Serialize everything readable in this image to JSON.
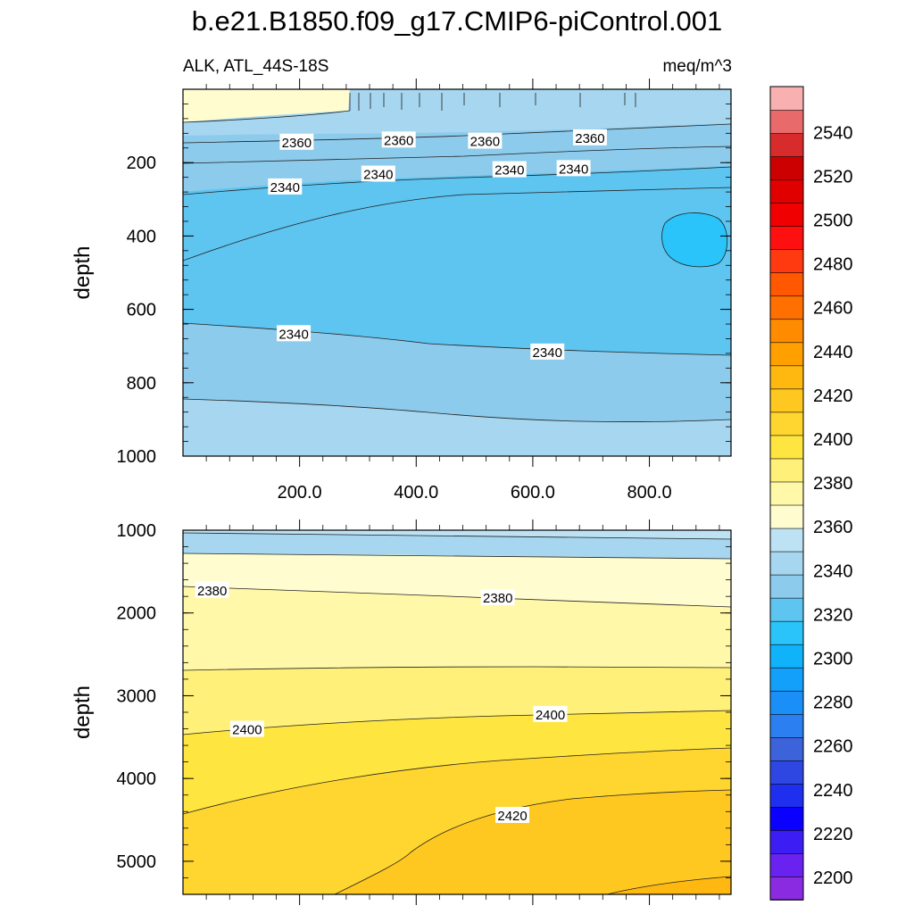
{
  "title": "b.e21.B1850.f09_g17.CMIP6-piControl.001",
  "subtitle_left": "ALK, ATL_44S-18S",
  "subtitle_right": "meq/m^3",
  "chart_data": [
    {
      "type": "contour",
      "panel": "upper",
      "ylabel": "depth",
      "ylim": [
        1000,
        0
      ],
      "xlim": [
        0,
        940
      ],
      "yticks": [
        200,
        400,
        600,
        800,
        1000
      ],
      "xticks": [
        200,
        400,
        600,
        800
      ],
      "xticklabels": [
        "200.0",
        "400.0",
        "600.0",
        "800.0"
      ],
      "contour_labels": [
        {
          "text": "2360",
          "x": 195,
          "y": 143
        },
        {
          "text": "2360",
          "x": 370,
          "y": 137
        },
        {
          "text": "2360",
          "x": 518,
          "y": 140
        },
        {
          "text": "2360",
          "x": 698,
          "y": 131
        },
        {
          "text": "2340",
          "x": 175,
          "y": 265
        },
        {
          "text": "2340",
          "x": 335,
          "y": 230
        },
        {
          "text": "2340",
          "x": 560,
          "y": 218
        },
        {
          "text": "2340",
          "x": 670,
          "y": 215
        },
        {
          "text": "2340",
          "x": 190,
          "y": 665
        },
        {
          "text": "2340",
          "x": 625,
          "y": 715
        }
      ]
    },
    {
      "type": "contour",
      "panel": "lower",
      "ylabel": "depth",
      "ylim": [
        5400,
        1000
      ],
      "xlim": [
        0,
        940
      ],
      "yticks": [
        1000,
        2000,
        3000,
        4000,
        5000
      ],
      "contour_labels": [
        {
          "text": "2380",
          "x": 50,
          "y": 1720
        },
        {
          "text": "2380",
          "x": 540,
          "y": 1810
        },
        {
          "text": "2400",
          "x": 110,
          "y": 3400
        },
        {
          "text": "2400",
          "x": 630,
          "y": 3220
        },
        {
          "text": "2420",
          "x": 565,
          "y": 4440
        }
      ]
    }
  ],
  "colorbar": {
    "labels": [
      "2200",
      "2220",
      "2240",
      "2260",
      "2280",
      "2300",
      "2320",
      "2340",
      "2360",
      "2380",
      "2400",
      "2420",
      "2440",
      "2460",
      "2480",
      "2500",
      "2520",
      "2540"
    ],
    "colors_bottom_to_top": [
      "#8a2be2",
      "#6a22f0",
      "#3c1ef4",
      "#0a00ff",
      "#1f2ff0",
      "#2f47e2",
      "#3d63da",
      "#2b7ff0",
      "#1b8ff8",
      "#13a0fa",
      "#10b2fa",
      "#2ac4fa",
      "#5ec4f0",
      "#8dcbec",
      "#a6d6f0",
      "#bde2f4",
      "#fffdd0",
      "#fff8a8",
      "#fff07a",
      "#ffe540",
      "#ffd530",
      "#ffc820",
      "#ffb810",
      "#ffa000",
      "#ff8c00",
      "#ff7000",
      "#ff5800",
      "#ff3a10",
      "#ff1010",
      "#f00000",
      "#e00000",
      "#cc0000",
      "#d82c2c",
      "#e86a6a",
      "#f8b0b0"
    ]
  }
}
